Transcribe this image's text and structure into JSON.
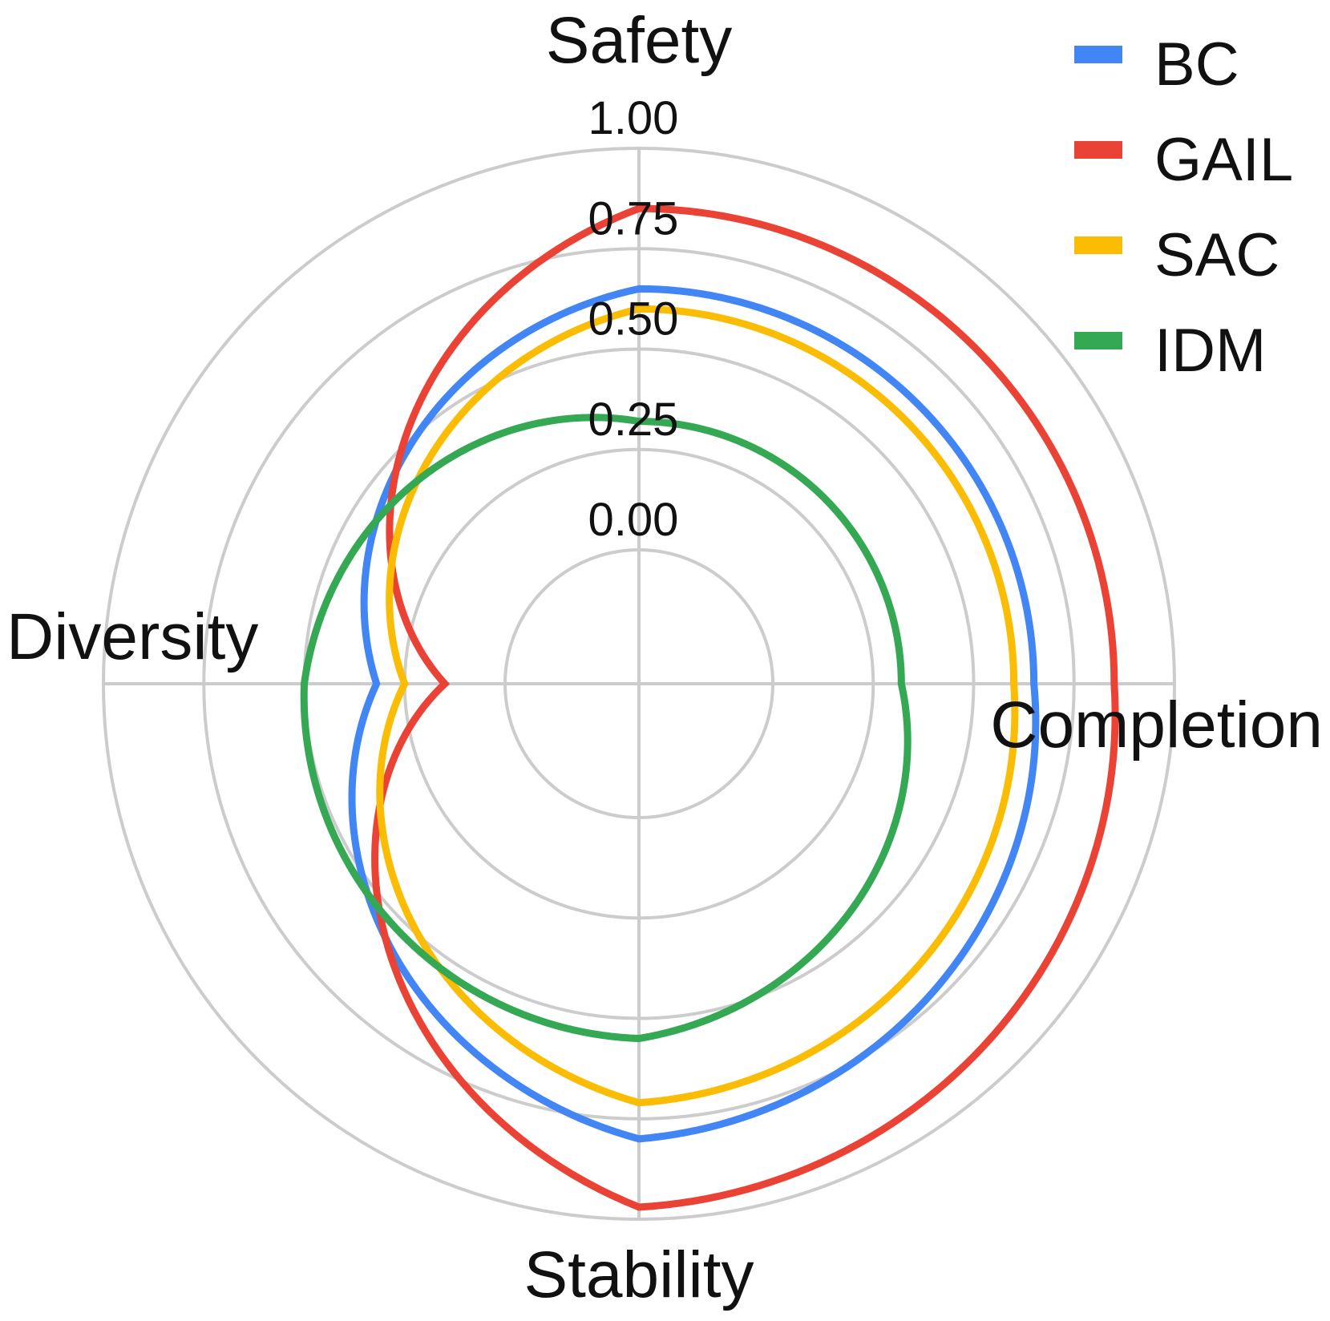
{
  "chart_data": {
    "type": "radar",
    "axes": [
      "Safety",
      "Completion",
      "Stability",
      "Diversity"
    ],
    "rmin": 0,
    "rmax": 1,
    "ticks": [
      "0.00",
      "0.25",
      "0.50",
      "0.75",
      "1.00"
    ],
    "tick_values": [
      0,
      0.25,
      0.5,
      0.75,
      1.0
    ],
    "grid": true,
    "legend_position": "top-right",
    "series": [
      {
        "name": "BC",
        "color": "#4285F4",
        "values": [
          0.65,
          0.65,
          0.8,
          0.32
        ]
      },
      {
        "name": "GAIL",
        "color": "#EA4335",
        "values": [
          0.85,
          0.85,
          0.97,
          0.15
        ]
      },
      {
        "name": "SAC",
        "color": "#FBBC04",
        "values": [
          0.6,
          0.6,
          0.71,
          0.25
        ]
      },
      {
        "name": "IDM",
        "color": "#34A853",
        "values": [
          0.32,
          0.32,
          0.55,
          0.5
        ]
      }
    ]
  }
}
